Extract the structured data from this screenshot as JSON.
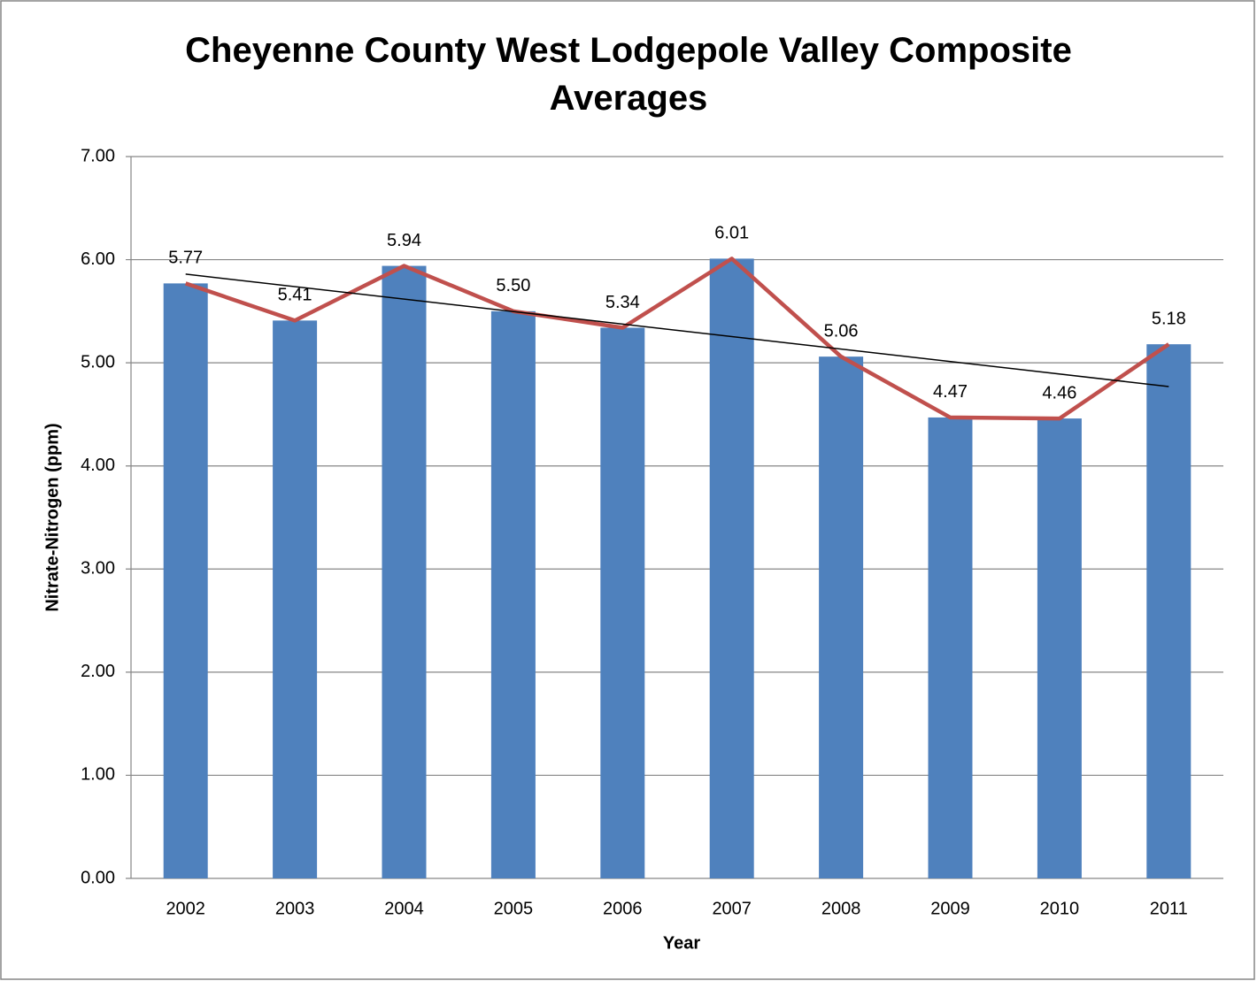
{
  "chart_data": {
    "type": "bar",
    "title": "Cheyenne County West Lodgepole Valley Composite Averages",
    "xlabel": "Year",
    "ylabel": "Nitrate-Nitrogen (ppm)",
    "categories": [
      "2002",
      "2003",
      "2004",
      "2005",
      "2006",
      "2007",
      "2008",
      "2009",
      "2010",
      "2011"
    ],
    "series": [
      {
        "type": "bar",
        "color": "#4f81bd",
        "values": [
          5.77,
          5.41,
          5.94,
          5.5,
          5.34,
          6.01,
          5.06,
          4.47,
          4.46,
          5.18
        ],
        "value_labels": [
          "5.77",
          "5.41",
          "5.94",
          "5.50",
          "5.34",
          "6.01",
          "5.06",
          "4.47",
          "4.46",
          "5.18"
        ]
      },
      {
        "type": "line",
        "color": "#c0504d",
        "values": [
          5.77,
          5.41,
          5.94,
          5.5,
          5.34,
          6.01,
          5.06,
          4.47,
          4.46,
          5.18
        ]
      }
    ],
    "trendline": {
      "color": "#000000",
      "values": [
        5.86,
        4.77
      ]
    },
    "ylim": [
      0,
      7
    ],
    "yticks": [
      {
        "value": 0,
        "label": "0.00"
      },
      {
        "value": 1,
        "label": "1.00"
      },
      {
        "value": 2,
        "label": "2.00"
      },
      {
        "value": 3,
        "label": "3.00"
      },
      {
        "value": 4,
        "label": "4.00"
      },
      {
        "value": 5,
        "label": "5.00"
      },
      {
        "value": 6,
        "label": "6.00"
      },
      {
        "value": 7,
        "label": "7.00"
      }
    ],
    "grid": true
  }
}
